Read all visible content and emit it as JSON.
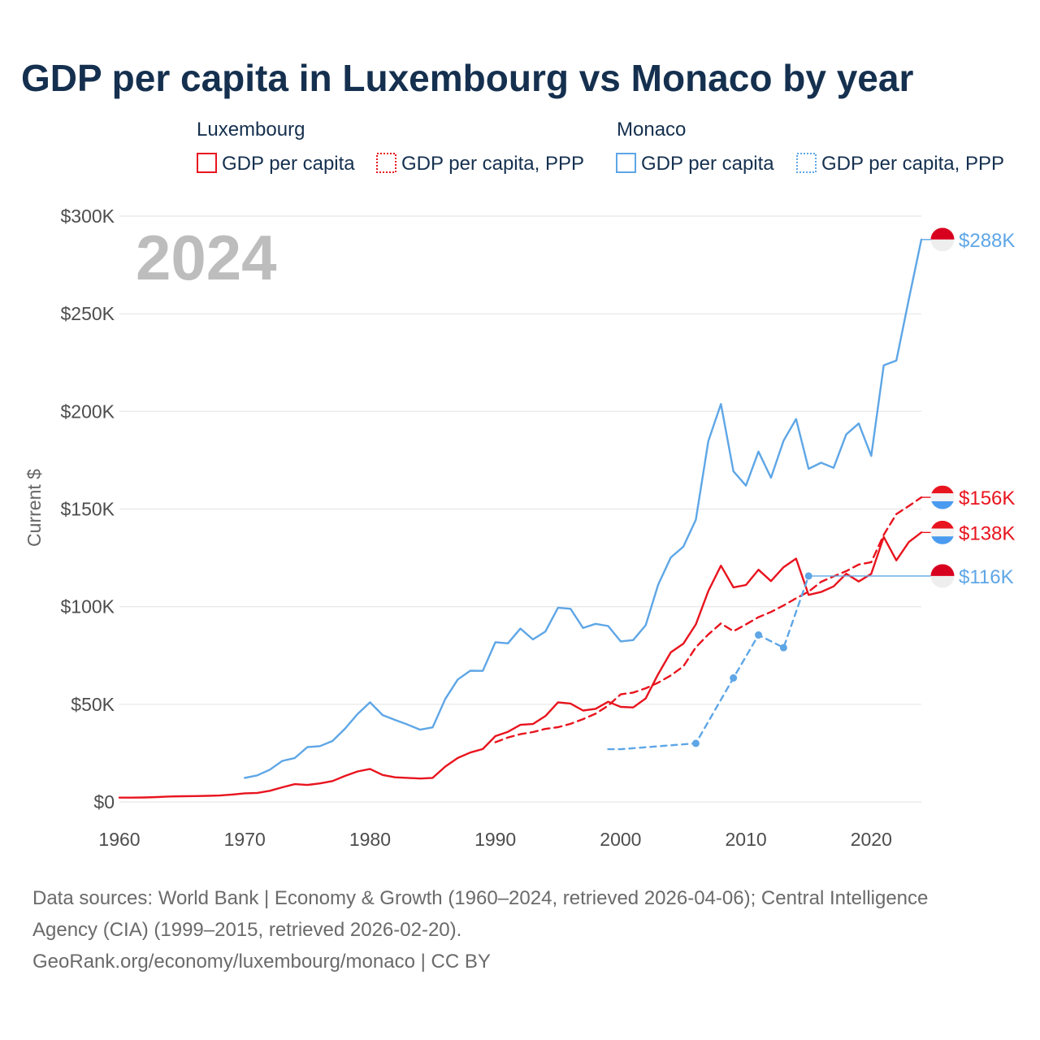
{
  "colors": {
    "luxembourg": "#e8141e",
    "monaco": "#5ea6e6",
    "grid": "#e6e6e6",
    "text": "#15304f"
  },
  "chart_data": {
    "type": "line",
    "title": "GDP per capita in Luxembourg vs Monaco by year",
    "year_label": "2024",
    "ylabel": "Current $",
    "xlabel": "",
    "xlim": [
      1960,
      2024
    ],
    "ylim": [
      0,
      300000
    ],
    "x_ticks": [
      1960,
      1970,
      1980,
      1990,
      2000,
      2010,
      2020
    ],
    "y_ticks": [
      {
        "value": 0,
        "label": "$0"
      },
      {
        "value": 50000,
        "label": "$50K"
      },
      {
        "value": 100000,
        "label": "$100K"
      },
      {
        "value": 150000,
        "label": "$150K"
      },
      {
        "value": 200000,
        "label": "$200K"
      },
      {
        "value": 250000,
        "label": "$250K"
      },
      {
        "value": 300000,
        "label": "$300K"
      }
    ],
    "grid": true,
    "legend": [
      {
        "group": "Luxembourg",
        "items": [
          "GDP per capita",
          "GDP per capita, PPP"
        ]
      },
      {
        "group": "Monaco",
        "items": [
          "GDP per capita",
          "GDP per capita, PPP"
        ]
      }
    ],
    "series": [
      {
        "name": "Luxembourg GDP per capita",
        "country": "Luxembourg",
        "style": "solid",
        "end_label": "$138K",
        "x": [
          1960,
          1961,
          1962,
          1963,
          1964,
          1965,
          1966,
          1967,
          1968,
          1969,
          1970,
          1971,
          1972,
          1973,
          1974,
          1975,
          1976,
          1977,
          1978,
          1979,
          1980,
          1981,
          1982,
          1983,
          1984,
          1985,
          1986,
          1987,
          1988,
          1989,
          1990,
          1991,
          1992,
          1993,
          1994,
          1995,
          1996,
          1997,
          1998,
          1999,
          2000,
          2001,
          2002,
          2003,
          2004,
          2005,
          2006,
          2007,
          2008,
          2009,
          2010,
          2011,
          2012,
          2013,
          2014,
          2015,
          2016,
          2017,
          2018,
          2019,
          2020,
          2021,
          2022,
          2023,
          2024
        ],
        "values": [
          2200,
          2200,
          2300,
          2500,
          2800,
          2900,
          3000,
          3100,
          3300,
          3800,
          4400,
          4600,
          5700,
          7500,
          9100,
          8700,
          9500,
          10700,
          13300,
          15600,
          16900,
          13800,
          12600,
          12300,
          12000,
          12300,
          18100,
          22500,
          25300,
          27100,
          33700,
          35900,
          39500,
          39900,
          44000,
          51000,
          50400,
          46800,
          47700,
          51300,
          48700,
          48400,
          53000,
          65500,
          76600,
          81000,
          90900,
          108000,
          121000,
          109900,
          111100,
          118900,
          113100,
          120200,
          124600,
          106000,
          107500,
          110400,
          116900,
          112900,
          116800,
          135700,
          123700,
          133100,
          138000
        ]
      },
      {
        "name": "Luxembourg GDP per capita, PPP",
        "country": "Luxembourg",
        "style": "dashed",
        "end_label": "$156K",
        "x": [
          1990,
          1991,
          1992,
          1993,
          1994,
          1995,
          1996,
          1997,
          1998,
          1999,
          2000,
          2001,
          2002,
          2003,
          2004,
          2005,
          2006,
          2007,
          2008,
          2009,
          2010,
          2011,
          2012,
          2013,
          2014,
          2015,
          2016,
          2017,
          2018,
          2019,
          2020,
          2021,
          2022,
          2023,
          2024
        ],
        "values": [
          30600,
          33000,
          34700,
          35800,
          37400,
          38300,
          40000,
          42400,
          45200,
          49300,
          55100,
          56000,
          58200,
          61100,
          64800,
          69400,
          79200,
          85800,
          91400,
          87400,
          90900,
          94600,
          97300,
          100600,
          104300,
          107700,
          112700,
          115500,
          118200,
          121600,
          122800,
          136800,
          147400,
          151600,
          156000
        ]
      },
      {
        "name": "Monaco GDP per capita",
        "country": "Monaco",
        "style": "solid",
        "end_label": "$288K",
        "x": [
          1970,
          1971,
          1972,
          1973,
          1974,
          1975,
          1976,
          1977,
          1978,
          1979,
          1980,
          1981,
          1982,
          1983,
          1984,
          1985,
          1986,
          1987,
          1988,
          1989,
          1990,
          1991,
          1992,
          1993,
          1994,
          1995,
          1996,
          1997,
          1998,
          1999,
          2000,
          2001,
          2002,
          2003,
          2004,
          2005,
          2006,
          2007,
          2008,
          2009,
          2010,
          2011,
          2012,
          2013,
          2014,
          2015,
          2016,
          2017,
          2018,
          2019,
          2020,
          2021,
          2022,
          2023,
          2024
        ],
        "values": [
          12300,
          13600,
          16500,
          21000,
          22500,
          28100,
          28600,
          31200,
          37500,
          45000,
          51000,
          44500,
          42000,
          39600,
          37000,
          38200,
          52700,
          62700,
          67200,
          67100,
          81800,
          81200,
          88800,
          83200,
          87300,
          99500,
          98900,
          89100,
          91200,
          90100,
          82200,
          82900,
          90500,
          111300,
          125200,
          130700,
          144500,
          184800,
          203800,
          169300,
          162000,
          179400,
          166000,
          185000,
          196100,
          170600,
          173700,
          171100,
          188200,
          193800,
          177200,
          223600,
          226000,
          257500,
          288000
        ]
      },
      {
        "name": "Monaco GDP per capita, PPP",
        "country": "Monaco",
        "style": "dotted",
        "end_label": "$116K",
        "x": [
          1999,
          2000,
          2006,
          2009,
          2011,
          2013,
          2015
        ],
        "values": [
          27000,
          27000,
          30000,
          63500,
          85500,
          79000,
          115700
        ],
        "markers": [
          2006,
          2009,
          2011,
          2013,
          2015
        ]
      }
    ]
  },
  "footer": {
    "sources_line1": "Data sources: World Bank | Economy & Growth (1960–2024, retrieved 2026-04-06); Central Intelligence",
    "sources_line2": "Agency (CIA) (1999–2015, retrieved 2026-02-20).",
    "credit": "GeoRank.org/economy/luxembourg/monaco | CC BY"
  }
}
